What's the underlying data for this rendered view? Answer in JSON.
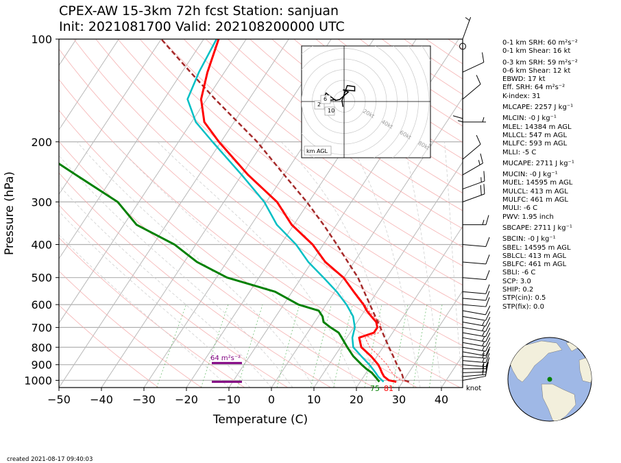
{
  "header": {
    "title_line1": "CPEX-AW 15-3km  72h fcst  Station: sanjuan",
    "title_line2": "Init: 2021081700  Valid: 202108200000 UTC"
  },
  "footer": {
    "created": "created 2021-08-17 09:40:03"
  },
  "indices": [
    "0-1 km SRH: 60 m²s⁻²",
    "0-1 km Shear: 16 kt",
    "",
    "0-3 km SRH: 59 m²s⁻²",
    "0-6 km Shear: 12 kt",
    "EBWD: 17 kt",
    "Eff. SRH: 64 m²s⁻²",
    "K-index: 31",
    "MLCAPE: 2257 J kg⁻¹",
    "MLCIN: -0 J kg⁻¹",
    "MLEL: 14384 m AGL",
    "MLLCL: 547 m AGL",
    "MLLFC: 593 m AGL",
    "MLLI: -5 C",
    "MUCAPE: 2711 J kg⁻¹",
    "MUCIN: -0 J kg⁻¹",
    "MUEL: 14595 m AGL",
    "MULCL: 413 m AGL",
    "MULFC: 461 m AGL",
    "MULI: -6 C",
    "PWV: 1.95 inch",
    "SBCAPE: 2711 J kg⁻¹",
    "SBCIN: -0 J kg⁻¹",
    "SBEL: 14595 m AGL",
    "SBLCL: 413 m AGL",
    "SBLFC: 461 m AGL",
    "SBLI: -6 C",
    "SCP: 3.0",
    "SHIP: 0.2",
    "STP(cin): 0.5",
    "STP(fix): 0.0"
  ],
  "chart_data": {
    "type": "line",
    "subtype": "skew-T log-p diagram",
    "xlabel": "Temperature (C)",
    "ylabel": "Pressure (hPa)",
    "xlim": [
      -50,
      45
    ],
    "ylim": [
      1050,
      100
    ],
    "y_scale": "log",
    "x_ticks": [
      -50,
      -40,
      -30,
      -20,
      -10,
      0,
      10,
      20,
      30,
      40
    ],
    "y_ticks": [
      100,
      200,
      300,
      400,
      500,
      600,
      700,
      800,
      900,
      1000
    ],
    "grid": true,
    "colors": {
      "temperature": "#ff0000",
      "dewpoint": "#008000",
      "wetbulb": "#00bfc4",
      "virtual_temperature": "#ff5a5a",
      "parcel": "#a52a2a",
      "effective_layer": "#800080",
      "dry_adiabats": "#f4a6a6",
      "isotherms": "#aaaaaa",
      "mixing_ratio": "#4caf50"
    },
    "series": [
      {
        "key": "temperature",
        "pressure": [
          1010,
          1000,
          975,
          950,
          925,
          900,
          850,
          800,
          750,
          725,
          700,
          675,
          650,
          625,
          600,
          550,
          500,
          450,
          400,
          350,
          300,
          250,
          200,
          175,
          150,
          125,
          100
        ],
        "temp_c": [
          28.5,
          26.5,
          24.8,
          23.7,
          22.7,
          21.6,
          18.6,
          14.9,
          12.9,
          15.6,
          15.6,
          14.5,
          12.5,
          10.5,
          8.8,
          4.5,
          -0.1,
          -6.8,
          -12.5,
          -20.5,
          -27.5,
          -38.5,
          -50.5,
          -57.0,
          -61.3,
          -64.0,
          -66.5
        ]
      },
      {
        "key": "dewpoint",
        "pressure": [
          1010,
          1000,
          975,
          950,
          925,
          900,
          850,
          800,
          750,
          725,
          700,
          675,
          650,
          625,
          600,
          550,
          500,
          450,
          400,
          350,
          300,
          250,
          200,
          175,
          150,
          125,
          100
        ],
        "temp_c": [
          24.5,
          24.0,
          22.7,
          21.3,
          19.4,
          17.7,
          14.4,
          11.6,
          8.8,
          7.3,
          4.6,
          2.1,
          1.0,
          -0.8,
          -6.5,
          -14.0,
          -27.5,
          -37.0,
          -45.0,
          -57.0,
          -65.0,
          -79.0,
          -96.0,
          -107.0,
          -122.0,
          -129.0,
          -133.5
        ]
      },
      {
        "key": "wetbulb",
        "pressure": [
          1010,
          1000,
          975,
          950,
          925,
          900,
          850,
          800,
          750,
          700,
          650,
          600,
          550,
          500,
          450,
          400,
          350,
          300,
          250,
          200,
          175,
          150,
          125,
          100
        ],
        "temp_c": [
          25.5,
          24.9,
          23.4,
          22.2,
          20.9,
          19.5,
          16.3,
          13.0,
          11.3,
          10.3,
          8.2,
          4.8,
          0.5,
          -4.8,
          -10.8,
          -16.4,
          -24.0,
          -30.5,
          -40.0,
          -52.0,
          -59.0,
          -64.5,
          -66.0,
          -67.0
        ]
      },
      {
        "key": "virtual_temperature",
        "pressure": [
          1010,
          1000,
          975,
          950,
          925,
          900,
          850,
          800,
          750,
          725,
          700,
          675,
          650,
          625,
          600,
          550,
          500,
          450,
          400,
          350,
          300,
          250,
          200,
          175,
          150,
          125,
          100
        ],
        "temp_c": [
          31.0,
          29.3,
          27.5,
          26.1,
          24.8,
          23.7,
          20.5,
          16.9,
          14.3,
          16.8,
          16.6,
          15.3,
          13.1,
          11.0,
          9.1,
          4.7,
          0.0,
          -6.7,
          -12.5,
          -20.5,
          -27.5,
          -38.5,
          -50.5,
          -57.0,
          -61.3,
          -64.0,
          -66.5
        ]
      },
      {
        "key": "parcel",
        "pressure": [
          1010,
          1000,
          975,
          950,
          900,
          850,
          800,
          700,
          600,
          500,
          450,
          400,
          350,
          300,
          250,
          200,
          150,
          125,
          100
        ],
        "temp_c": [
          31.5,
          30.0,
          29.2,
          28.3,
          26.0,
          23.8,
          21.4,
          16.3,
          10.3,
          3.3,
          -1.5,
          -6.8,
          -13.0,
          -20.5,
          -30.0,
          -41.5,
          -58.0,
          -68.0,
          -80.0
        ]
      }
    ],
    "surface_labels": {
      "dewpoint": "75",
      "temperature": "81"
    },
    "effective_layer": {
      "label": "64 m²s⁻²",
      "top_hPa": 890,
      "bottom_hPa": 1010
    },
    "wind_unit": "knot",
    "hodograph": {
      "label": "km AGL",
      "ring_labels": [
        "20kt",
        "40kt",
        "60kt",
        "80kt"
      ],
      "height_labels": [
        "2",
        "6",
        "10"
      ],
      "points_kt": [
        [
          -8,
          2
        ],
        [
          -14,
          1
        ],
        [
          -19,
          3
        ],
        [
          -17,
          8
        ],
        [
          -8,
          1
        ],
        [
          -4,
          2
        ],
        [
          4,
          9
        ],
        [
          -1,
          11
        ],
        [
          10,
          10
        ],
        [
          10,
          14
        ],
        [
          3,
          15
        ],
        [
          -2,
          1
        ],
        [
          -1,
          -5
        ]
      ]
    },
    "wind_profile": [
      {
        "p": 1000,
        "spd": 10,
        "dir": 80
      },
      {
        "p": 975,
        "spd": 15,
        "dir": 85
      },
      {
        "p": 950,
        "spd": 15,
        "dir": 88
      },
      {
        "p": 925,
        "spd": 15,
        "dir": 90
      },
      {
        "p": 900,
        "spd": 15,
        "dir": 95
      },
      {
        "p": 875,
        "spd": 15,
        "dir": 95
      },
      {
        "p": 850,
        "spd": 15,
        "dir": 95
      },
      {
        "p": 825,
        "spd": 15,
        "dir": 100
      },
      {
        "p": 800,
        "spd": 15,
        "dir": 100
      },
      {
        "p": 775,
        "spd": 15,
        "dir": 100
      },
      {
        "p": 750,
        "spd": 15,
        "dir": 100
      },
      {
        "p": 725,
        "spd": 15,
        "dir": 100
      },
      {
        "p": 700,
        "spd": 15,
        "dir": 100
      },
      {
        "p": 675,
        "spd": 15,
        "dir": 100
      },
      {
        "p": 650,
        "spd": 10,
        "dir": 100
      },
      {
        "p": 625,
        "spd": 10,
        "dir": 100
      },
      {
        "p": 600,
        "spd": 10,
        "dir": 95
      },
      {
        "p": 575,
        "spd": 10,
        "dir": 95
      },
      {
        "p": 550,
        "spd": 10,
        "dir": 95
      },
      {
        "p": 500,
        "spd": 10,
        "dir": 95
      },
      {
        "p": 450,
        "spd": 10,
        "dir": 95
      },
      {
        "p": 400,
        "spd": 10,
        "dir": 95
      },
      {
        "p": 350,
        "spd": 15,
        "dir": 90
      },
      {
        "p": 300,
        "spd": 20,
        "dir": 70
      },
      {
        "p": 275,
        "spd": 15,
        "dir": 70
      },
      {
        "p": 250,
        "spd": 15,
        "dir": 60
      },
      {
        "p": 225,
        "spd": 10,
        "dir": 50
      },
      {
        "p": 200,
        "spd": 15,
        "dir": 0
      },
      {
        "p": 175,
        "spd": 5,
        "dir": 90
      },
      {
        "p": 150,
        "spd": 10,
        "dir": 50
      },
      {
        "p": 125,
        "spd": 10,
        "dir": 65
      },
      {
        "p": 105,
        "spd": 0,
        "dir": 0
      },
      {
        "p": 100,
        "spd": 5,
        "dir": 20
      }
    ]
  }
}
